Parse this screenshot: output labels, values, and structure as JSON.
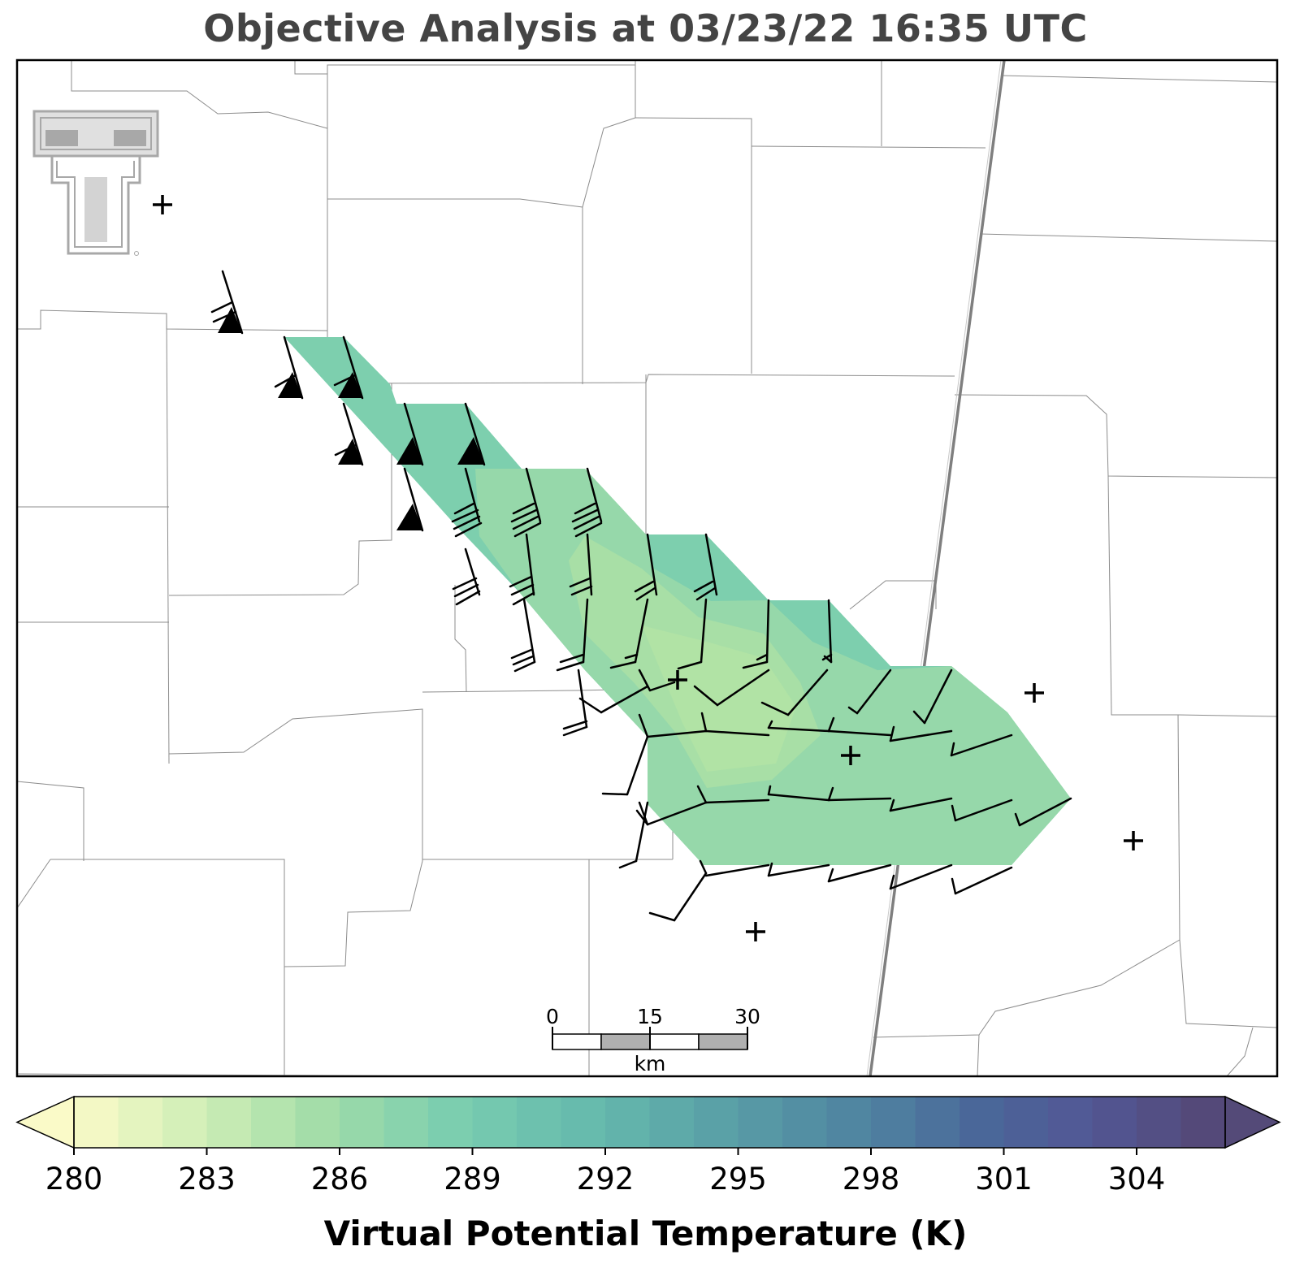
{
  "title": "Objective Analysis at 03/23/22 16:35 UTC",
  "colorbar": {
    "label": "Virtual Potential Temperature (K)",
    "min": 280,
    "max": 306,
    "step": 1,
    "ticks": [
      280,
      283,
      286,
      289,
      292,
      295,
      298,
      301,
      304
    ],
    "tick_labels": [
      "280",
      "283",
      "286",
      "289",
      "292",
      "295",
      "298",
      "301",
      "304"
    ],
    "extend": "both",
    "colormap": "crest (yellow-green-blue-purple)"
  },
  "scale_bar": {
    "labels": [
      "0",
      "15",
      "30"
    ],
    "unit": "km"
  },
  "logo": {
    "name": "texas-tech-double-t-logo",
    "color": "#a8a8a8"
  },
  "analysis_field": {
    "colors": {
      "outer": "#7dcfae",
      "mid": "#96d8aa",
      "inner": "#a8dfa6"
    },
    "approx_value_range_K": [
      285,
      288
    ]
  },
  "stations": {
    "marker": "plus",
    "count": 6
  },
  "wind_barbs": {
    "units": "knots",
    "notes": "barbs point toward wind origin; full barb = 10, half = 5, flag = 50"
  }
}
